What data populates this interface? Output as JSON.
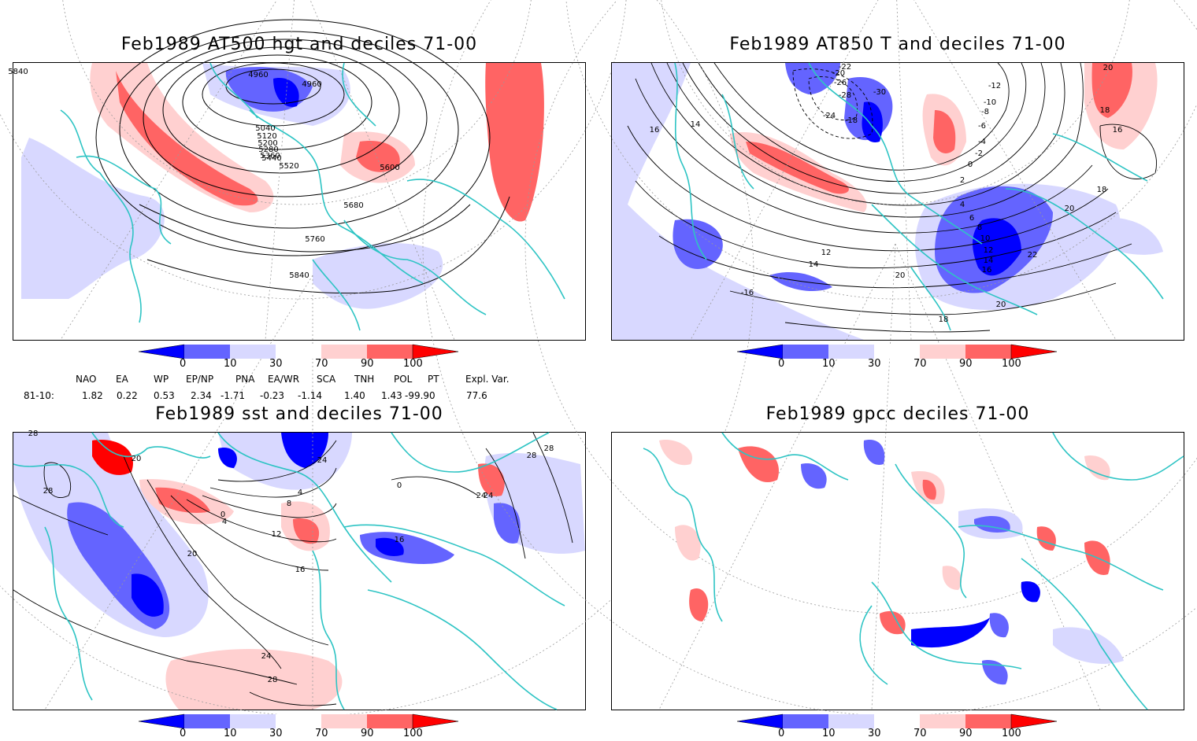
{
  "panels": [
    {
      "title": "Feb1989 AT500 hgt and deciles 71-00",
      "contour_labels": [
        "4960",
        "4960",
        "5040",
        "5120",
        "5200",
        "5280",
        "5360",
        "5440",
        "5520",
        "5600",
        "5680",
        "5760",
        "5840",
        "5840"
      ]
    },
    {
      "title": "Feb1989 AT850 T and deciles 71-00",
      "contour_labels": [
        "-22",
        "-20",
        "-26",
        "-28",
        "-30",
        "-24",
        "-18",
        "-12",
        "-10",
        "-8",
        "-6",
        "-4",
        "-2",
        "0",
        "2",
        "4",
        "6",
        "8",
        "10",
        "12",
        "14",
        "16",
        "18",
        "20",
        "22",
        "14",
        "16",
        "-16",
        "20",
        "18",
        "12",
        "14",
        "16",
        "18",
        "20",
        "20"
      ]
    },
    {
      "title": "Feb1989 sst and deciles 71-00",
      "contour_labels": [
        "28",
        "20",
        "28",
        "24",
        "20",
        "16",
        "12",
        "8",
        "4",
        "0",
        "0",
        "4",
        "16",
        "24",
        "28",
        "24",
        "28",
        "24",
        "28"
      ]
    },
    {
      "title": "Feb1989 gpcc deciles 71-00",
      "contour_labels": []
    }
  ],
  "colorbar": {
    "labels": [
      "0",
      "10",
      "30",
      "70",
      "90",
      "100"
    ],
    "colors": [
      "#0000ff",
      "#6464ff",
      "#d8d8ff",
      "#ffffff",
      "#ffd0d0",
      "#ff6464",
      "#ff0000"
    ]
  },
  "indices": {
    "headers": [
      "NAO",
      "EA",
      "WP",
      "EP/NP",
      "PNA",
      "EA/WR",
      "SCA",
      "TNH",
      "POL",
      "PT",
      "Expl. Var."
    ],
    "row_label": "81-10:",
    "values": [
      "1.82",
      "0.22",
      "0.53",
      "2.34",
      "-1.71",
      "-0.23",
      "-1.14",
      "1.40",
      "1.43",
      "-99.90",
      "77.6"
    ]
  },
  "palette": {
    "coast": "#2ec4c4",
    "contour": "#000000",
    "grid": "#9a9a9a"
  }
}
